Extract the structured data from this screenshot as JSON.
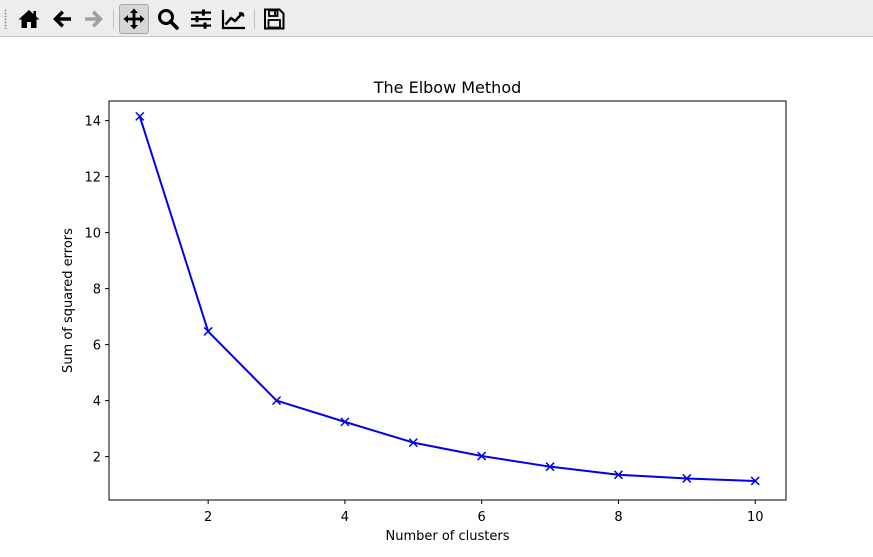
{
  "toolbar": {
    "buttons": [
      {
        "id": "home",
        "icon": "home-icon",
        "tooltip": "Reset original view"
      },
      {
        "id": "back",
        "icon": "arrow-left-icon",
        "tooltip": "Back to previous view"
      },
      {
        "id": "forward",
        "icon": "arrow-right-icon",
        "tooltip": "Forward to next view"
      },
      {
        "id": "pan",
        "icon": "move-icon",
        "tooltip": "Pan axes",
        "active": true
      },
      {
        "id": "zoom",
        "icon": "magnifier-icon",
        "tooltip": "Zoom to rectangle"
      },
      {
        "id": "subplots",
        "icon": "sliders-icon",
        "tooltip": "Configure subplots"
      },
      {
        "id": "customize",
        "icon": "line-chart-icon",
        "tooltip": "Edit axis, curve and image parameters"
      },
      {
        "id": "save",
        "icon": "floppy-disk-icon",
        "tooltip": "Save the figure"
      }
    ]
  },
  "colors": {
    "line": "#0000ee",
    "toolbar_bg": "#ededed",
    "icon": "#000000",
    "icon_disabled": "#a0a0a0"
  },
  "chart_data": {
    "type": "line",
    "title": "The Elbow Method",
    "xlabel": "Number of clusters",
    "ylabel": "Sum of squared errors",
    "marker": "x",
    "x": [
      1,
      2,
      3,
      4,
      5,
      6,
      7,
      8,
      9,
      10
    ],
    "series": [
      {
        "values": [
          14.15,
          6.47,
          4.0,
          3.24,
          2.5,
          2.02,
          1.64,
          1.35,
          1.22,
          1.13
        ]
      }
    ],
    "xlim": [
      0.55,
      10.45
    ],
    "ylim": [
      0.45,
      14.7
    ],
    "xticks": [
      2,
      4,
      6,
      8,
      10
    ],
    "yticks": [
      2,
      4,
      6,
      8,
      10,
      12,
      14
    ],
    "grid": false
  }
}
